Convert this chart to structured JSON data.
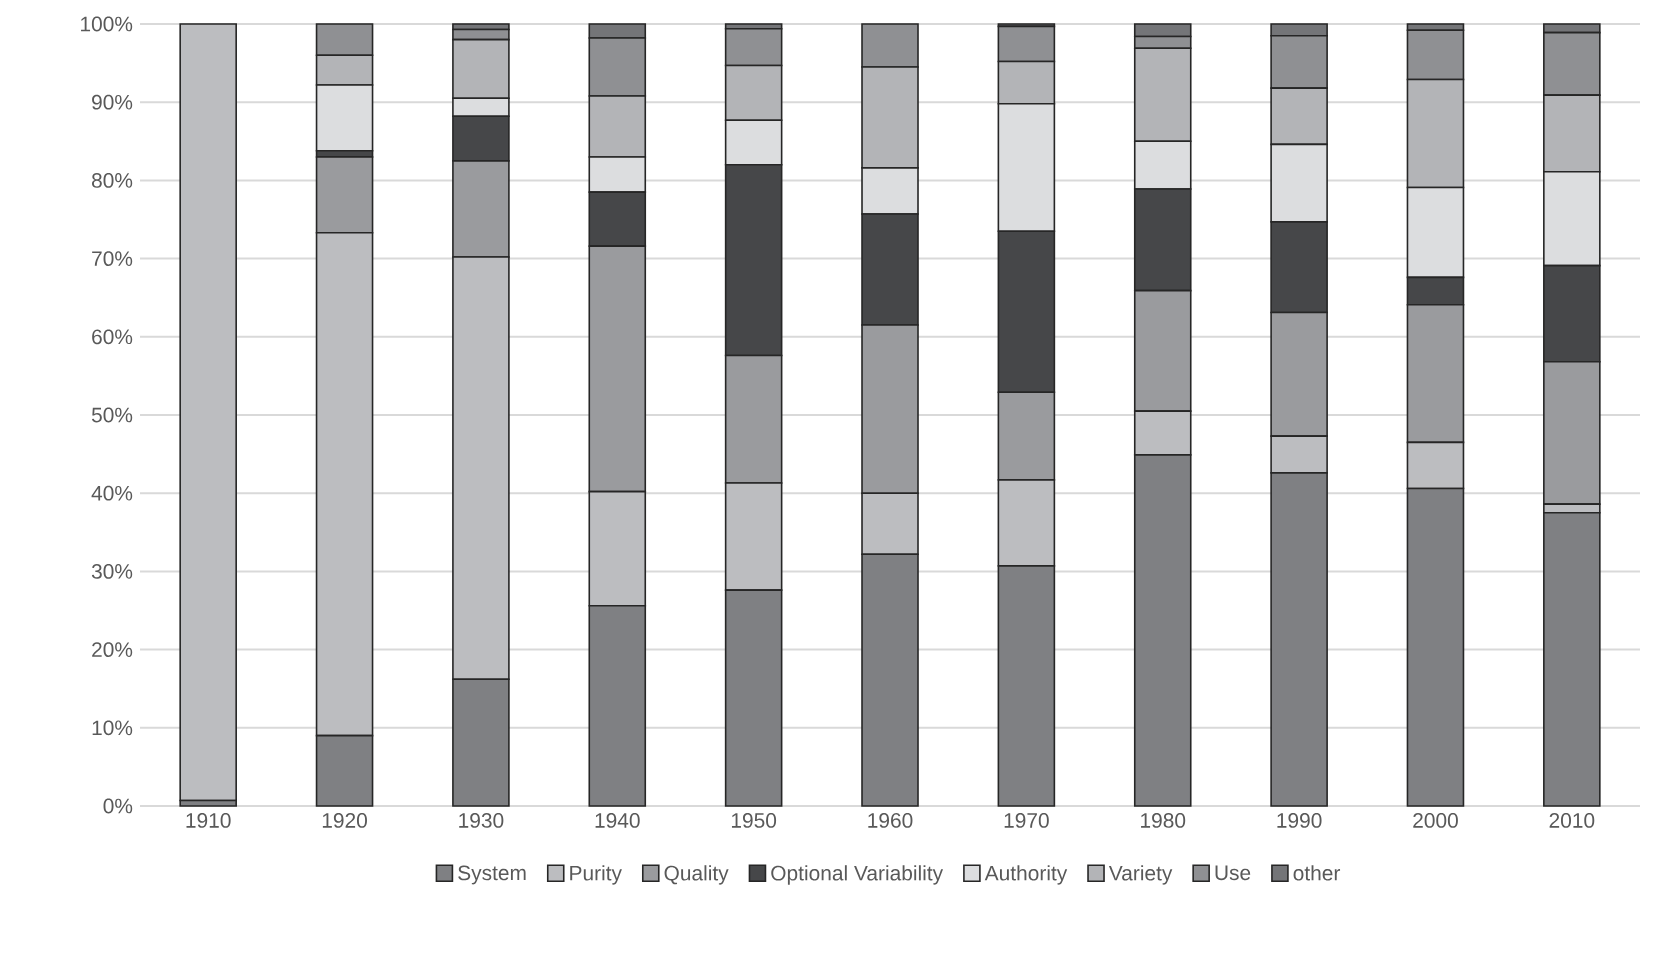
{
  "chart_data": {
    "type": "bar",
    "stacked": true,
    "categories": [
      "1910",
      "1920",
      "1930",
      "1940",
      "1950",
      "1960",
      "1970",
      "1980",
      "1990",
      "2000",
      "2010"
    ],
    "series": [
      {
        "name": "System",
        "color": "#7f8083",
        "values": [
          0.7,
          9,
          16.2,
          25.6,
          27.6,
          32.2,
          30.7,
          44.9,
          42.6,
          40.6,
          37.5
        ]
      },
      {
        "name": "Purity",
        "color": "#bcbdc0",
        "values": [
          99.3,
          64.3,
          54,
          14.6,
          13.7,
          7.8,
          11,
          5.6,
          4.7,
          5.9,
          1.1
        ]
      },
      {
        "name": "Quality",
        "color": "#9a9b9e",
        "values": [
          0,
          9.7,
          12.3,
          31.4,
          16.3,
          21.5,
          11.2,
          15.4,
          15.8,
          17.6,
          18.2
        ]
      },
      {
        "name": "Optional Variability",
        "color": "#464749",
        "values": [
          0,
          0.8,
          5.7,
          6.9,
          24.4,
          14.2,
          20.6,
          13,
          11.6,
          3.5,
          12.3
        ]
      },
      {
        "name": "Authority",
        "color": "#dcdddf",
        "values": [
          0,
          8.4,
          2.3,
          4.5,
          5.7,
          5.9,
          16.3,
          6.1,
          9.9,
          11.5,
          12
        ]
      },
      {
        "name": "Variety",
        "color": "#b3b4b7",
        "values": [
          0,
          3.8,
          7.5,
          7.8,
          7,
          12.9,
          5.4,
          11.9,
          7.2,
          13.8,
          9.8
        ]
      },
      {
        "name": "Use",
        "color": "#8f9093",
        "values": [
          0,
          4,
          1.3,
          7.4,
          4.7,
          5.5,
          4.5,
          1.5,
          6.7,
          6.3,
          8
        ]
      },
      {
        "name": "other",
        "color": "#747578",
        "values": [
          0,
          0,
          0.7,
          1.8,
          0.6,
          0,
          0.3,
          1.6,
          1.5,
          0.8,
          1.1
        ]
      }
    ],
    "ylim": [
      0,
      100
    ],
    "yticks": [
      {
        "value": 0,
        "label": "0%"
      },
      {
        "value": 10,
        "label": "10%"
      },
      {
        "value": 20,
        "label": "20%"
      },
      {
        "value": 30,
        "label": "30%"
      },
      {
        "value": 40,
        "label": "40%"
      },
      {
        "value": 50,
        "label": "50%"
      },
      {
        "value": 60,
        "label": "60%"
      },
      {
        "value": 70,
        "label": "70%"
      },
      {
        "value": 80,
        "label": "80%"
      },
      {
        "value": 90,
        "label": "90%"
      },
      {
        "value": 100,
        "label": "100%"
      }
    ],
    "grid": "y",
    "legend": "bottom"
  }
}
